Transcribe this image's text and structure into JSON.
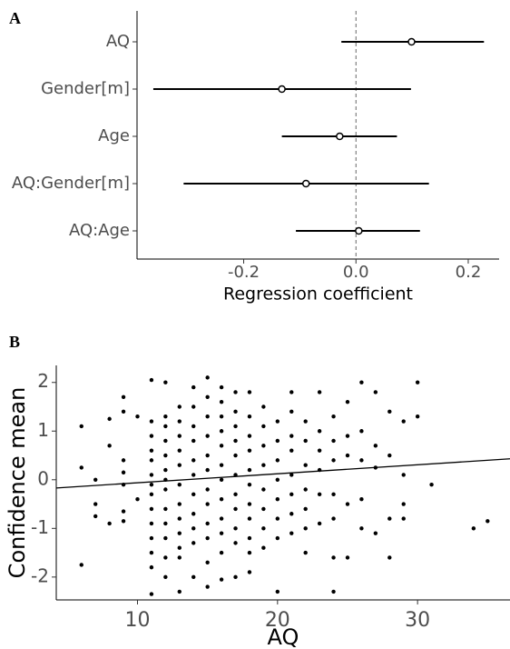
{
  "chart_data": [
    {
      "type": "forest",
      "title": "A",
      "xlabel": "Regression coefficient",
      "categories": [
        "AQ",
        "Gender[m]",
        "Age",
        "AQ:Gender[m]",
        "AQ:Age"
      ],
      "values": [
        0.099,
        -0.132,
        -0.029,
        -0.089,
        0.005
      ],
      "lower": [
        -0.026,
        -0.361,
        -0.132,
        -0.307,
        -0.107
      ],
      "upper": [
        0.228,
        0.098,
        0.073,
        0.13,
        0.114
      ],
      "xlim": [
        -0.39,
        0.255
      ],
      "xticks": [
        -0.2,
        {
          "value": 0,
          "label": "0.0"
        },
        0.2
      ],
      "xline": 0,
      "color": "#000000",
      "grid": false
    },
    {
      "type": "scatter",
      "title": "B",
      "xlabel": "AQ",
      "ylabel": "Confidence mean",
      "x": [
        6,
        6,
        6,
        7,
        7,
        7,
        8,
        8,
        8,
        9,
        9,
        9,
        9,
        9,
        9,
        9,
        10,
        10,
        11,
        11,
        11,
        11,
        11,
        11,
        11,
        11,
        11,
        11,
        11,
        11,
        11,
        11,
        12,
        12,
        12,
        12,
        12,
        12,
        12,
        12,
        12,
        12,
        12,
        12,
        12,
        13,
        13,
        13,
        13,
        13,
        13,
        13,
        13,
        13,
        13,
        13,
        13,
        14,
        14,
        14,
        14,
        14,
        14,
        14,
        14,
        14,
        14,
        14,
        15,
        15,
        15,
        15,
        15,
        15,
        15,
        15,
        15,
        15,
        15,
        15,
        16,
        16,
        16,
        16,
        16,
        16,
        16,
        16,
        16,
        16,
        16,
        16,
        17,
        17,
        17,
        17,
        17,
        17,
        17,
        17,
        17,
        17,
        17,
        18,
        18,
        18,
        18,
        18,
        18,
        18,
        18,
        18,
        18,
        18,
        19,
        19,
        19,
        19,
        19,
        19,
        19,
        19,
        20,
        20,
        20,
        20,
        20,
        20,
        20,
        20,
        21,
        21,
        21,
        21,
        21,
        21,
        21,
        21,
        22,
        22,
        22,
        22,
        22,
        22,
        22,
        23,
        23,
        23,
        23,
        23,
        23,
        24,
        24,
        24,
        24,
        24,
        24,
        24,
        25,
        25,
        25,
        25,
        25,
        26,
        26,
        26,
        26,
        26,
        27,
        27,
        27,
        27,
        28,
        28,
        28,
        28,
        29,
        29,
        29,
        29,
        30,
        30,
        31,
        34,
        35
      ],
      "y": [
        1.1,
        0.25,
        -1.75,
        0,
        -0.5,
        -0.75,
        1.25,
        0.7,
        -0.9,
        1.7,
        1.4,
        0.4,
        0.15,
        -0.1,
        -0.85,
        -0.65,
        1.3,
        -0.4,
        2.05,
        1.2,
        0.9,
        0.6,
        0.4,
        0.1,
        -0.1,
        -0.3,
        -0.6,
        -0.9,
        -1.2,
        -1.5,
        -1.8,
        -2.35,
        2.0,
        1.3,
        1.1,
        0.8,
        0.5,
        0.2,
        0,
        -0.2,
        -0.6,
        -0.9,
        -1.2,
        -1.6,
        -2.0,
        1.5,
        1.2,
        0.9,
        0.6,
        0.3,
        -0.1,
        -0.5,
        -0.8,
        -1.1,
        -1.4,
        -1.6,
        -2.3,
        1.9,
        1.5,
        1.1,
        0.8,
        0.4,
        0.1,
        -0.3,
        -0.7,
        -1.0,
        -1.3,
        -2.0,
        2.1,
        1.7,
        1.3,
        0.9,
        0.5,
        0.2,
        -0.2,
        -0.5,
        -0.9,
        -1.2,
        -1.7,
        -2.2,
        1.9,
        1.6,
        1.3,
        1.0,
        0.7,
        0.3,
        0,
        -0.4,
        -0.8,
        -1.1,
        -1.5,
        -2.05,
        1.8,
        1.4,
        1.1,
        0.8,
        0.5,
        0.1,
        -0.3,
        -0.6,
        -1.0,
        -1.3,
        -2.0,
        1.8,
        1.3,
        0.9,
        0.6,
        0.2,
        -0.1,
        -0.5,
        -0.8,
        -1.2,
        -1.5,
        -1.9,
        1.5,
        1.1,
        0.7,
        0.3,
        -0.2,
        -0.6,
        -1.0,
        -1.4,
        1.2,
        0.8,
        0.4,
        0,
        -0.4,
        -0.8,
        -1.2,
        -2.3,
        1.8,
        1.4,
        0.9,
        0.6,
        0.1,
        -0.3,
        -0.7,
        -1.1,
        1.2,
        0.8,
        0.3,
        -0.2,
        -0.6,
        -1.0,
        -1.5,
        1.8,
        1.0,
        0.6,
        0.2,
        -0.3,
        -0.9,
        1.3,
        0.8,
        0.4,
        -0.3,
        -0.8,
        -1.6,
        -2.3,
        1.6,
        0.9,
        0.5,
        -0.5,
        -1.6,
        2.0,
        1.0,
        0.4,
        -0.4,
        -1.0,
        1.8,
        0.7,
        0.25,
        -1.1,
        1.4,
        0.5,
        -0.8,
        -1.6,
        1.2,
        0.1,
        -0.5,
        -0.8,
        2.0,
        1.3,
        -0.1,
        -1.0,
        -0.85
      ],
      "trend": {
        "x": [
          4.2,
          36.6
        ],
        "y": [
          -0.17,
          0.43
        ]
      },
      "xlim": [
        4.2,
        36.6
      ],
      "ylim": [
        -2.47,
        2.35
      ],
      "xticks": [
        10,
        20,
        30
      ],
      "yticks": [
        -2,
        -1,
        0,
        1,
        2
      ],
      "color": "#000000",
      "grid": false
    }
  ]
}
